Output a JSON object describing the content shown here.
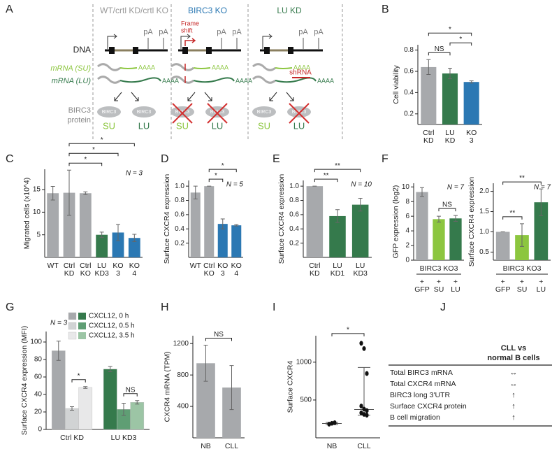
{
  "diagram": {
    "label": "A",
    "columns": [
      "WT/crtl KD/crtl KO",
      "BIRC3 KO",
      "LU KD"
    ],
    "dna": "DNA",
    "mrna_su": "mRNA (SU)",
    "mrna_lu": "mRNA (LU)",
    "protein": [
      "BIRC3",
      "protein"
    ],
    "pa": "pA",
    "polya": "AAAA",
    "frameshift": [
      "Frame",
      "shift"
    ],
    "shrna": "shRNA",
    "protein_name": "BIRC3",
    "isoforms": [
      "SU",
      "LU"
    ]
  },
  "chart_data": [
    {
      "type": "bar",
      "label": "B",
      "ylabel": "Cell viability",
      "categories": [
        [
          "Ctrl",
          "KD"
        ],
        [
          "LU",
          "KD"
        ],
        [
          "KO",
          "3"
        ]
      ],
      "values": [
        0.64,
        0.58,
        0.5
      ],
      "errors": [
        0.07,
        0.05,
        0.01
      ],
      "colors": [
        "#a7a9ac",
        "#357a4c",
        "#2b78b3"
      ],
      "ylim": [
        0.1,
        0.85
      ],
      "yticks": [
        0.2,
        0.4,
        0.6,
        0.8
      ],
      "brackets": [
        {
          "pair": [
            0,
            1
          ],
          "label": "NS"
        },
        {
          "pair": [
            1,
            2
          ],
          "label": "*"
        },
        {
          "pair": [
            0,
            2
          ],
          "label": "*"
        }
      ]
    },
    {
      "type": "bar",
      "label": "C",
      "ylabel": "Migrated cells (x10^4)",
      "note": "N = 3",
      "note_corner": "top-right",
      "categories": [
        [
          "WT"
        ],
        [
          "Ctrl",
          "KD"
        ],
        [
          "Ctrl",
          "KO"
        ],
        [
          "LU",
          "KD3"
        ],
        [
          "KO",
          "3"
        ],
        [
          "KO",
          "4"
        ]
      ],
      "values": [
        14.2,
        14.3,
        14.2,
        5,
        5.5,
        4.3
      ],
      "errors": [
        1.5,
        5,
        0.3,
        0.6,
        1.8,
        0.8
      ],
      "colors": [
        "#a7a9ac",
        "#a7a9ac",
        "#a7a9ac",
        "#357a4c",
        "#2b78b3",
        "#2b78b3"
      ],
      "ylim": [
        0,
        19.5
      ],
      "yticks": [
        5,
        10,
        15
      ],
      "brackets": [
        {
          "pair": [
            1,
            3
          ],
          "label": "*"
        },
        {
          "pair": [
            1,
            4
          ],
          "label": "*"
        },
        {
          "pair": [
            1,
            5
          ],
          "label": "*"
        }
      ]
    },
    {
      "type": "bar",
      "label": "D",
      "ylabel": "Surface CXCR4 expression",
      "note": "N = 5",
      "note_corner": "top-right",
      "categories": [
        [
          "WT"
        ],
        [
          "Ctrl",
          "KO"
        ],
        [
          "KO",
          "3"
        ],
        [
          "KO",
          "4"
        ]
      ],
      "values": [
        0.91,
        1,
        0.47,
        0.45
      ],
      "errors": [
        0.09,
        0,
        0.07,
        0.01
      ],
      "colors": [
        "#a7a9ac",
        "#a7a9ac",
        "#2b78b3",
        "#2b78b3"
      ],
      "ylim": [
        0,
        1.08
      ],
      "yticks": [
        0.2,
        0.4,
        0.6,
        0.8,
        {
          "value": 1,
          "label": "1.0"
        }
      ],
      "brackets": [
        {
          "pair": [
            1,
            2
          ],
          "label": "*"
        },
        {
          "pair": [
            1,
            3
          ],
          "label": "*"
        }
      ]
    },
    {
      "type": "bar",
      "label": "E",
      "ylabel": "Surface CXCR4 expression",
      "note": "N = 10",
      "note_corner": "top-right",
      "categories": [
        [
          "Ctrl",
          "KD"
        ],
        [
          "LU",
          "KD1"
        ],
        [
          "LU",
          "KD3"
        ]
      ],
      "values": [
        1,
        0.58,
        0.74
      ],
      "errors": [
        0,
        0.09,
        0.09
      ],
      "colors": [
        "#a7a9ac",
        "#357a4c",
        "#357a4c"
      ],
      "ylim": [
        0,
        1.08
      ],
      "yticks": [
        0.2,
        0.4,
        0.6,
        0.8,
        {
          "value": 1,
          "label": "1.0"
        }
      ],
      "brackets": [
        {
          "pair": [
            0,
            1
          ],
          "label": "**"
        },
        {
          "pair": [
            0,
            2
          ],
          "label": "**"
        }
      ]
    },
    {
      "type": "bar",
      "label": "F",
      "ylabel": "GFP expression (log2)",
      "note": "N = 7",
      "note_corner": "top-right",
      "xgroup": "BIRC3 KO3",
      "categories": [
        [
          "+",
          "GFP"
        ],
        [
          "+",
          "SU"
        ],
        [
          "+",
          "LU"
        ]
      ],
      "values": [
        9.3,
        5.6,
        5.7
      ],
      "errors": [
        0.6,
        0.4,
        0.4
      ],
      "colors": [
        "#a7a9ac",
        "#8cc63f",
        "#357a4c"
      ],
      "ylim": [
        0,
        10.5
      ],
      "yticks": [
        0,
        2,
        4,
        6,
        8,
        10
      ],
      "brackets": [
        {
          "pair": [
            1,
            2
          ],
          "label": "NS"
        }
      ]
    },
    {
      "type": "bar",
      "ylabel": "Surface CXCR4 expression",
      "note": "N = 7",
      "note_corner": "top-right",
      "xgroup": "BIRC3 KO3",
      "categories": [
        [
          "+",
          "GFP"
        ],
        [
          "+",
          "SU"
        ],
        [
          "+",
          "LU"
        ]
      ],
      "values": [
        1,
        0.92,
        1.73
      ],
      "errors": [
        0,
        0.28,
        0.33
      ],
      "colors": [
        "#a7a9ac",
        "#8cc63f",
        "#357a4c"
      ],
      "ylim": [
        0.3,
        2.2
      ],
      "yticks": [
        0.5,
        {
          "value": 1,
          "label": "1.0"
        },
        1.5,
        {
          "value": 2,
          "label": "2.0"
        }
      ],
      "brackets": [
        {
          "pair": [
            0,
            1
          ],
          "label": "**"
        },
        {
          "pair": [
            0,
            2
          ],
          "label": "**"
        }
      ]
    },
    {
      "type": "grouped_bar",
      "label": "G",
      "ylabel": "Surface CXCR4 expression (MFI)",
      "note": "N = 3",
      "note_corner": "top-left",
      "categories": [
        "Ctrl KD",
        "LU KD3"
      ],
      "series": [
        {
          "name": "CXCL12, 0 h",
          "colors": [
            "#a7a9ac",
            "#357a4c"
          ],
          "values": [
            90,
            69
          ],
          "errors": [
            11,
            3
          ]
        },
        {
          "name": "CXCL12, 0.5 h",
          "colors": [
            "#d1d3d4",
            "#5f9e74"
          ],
          "values": [
            24,
            23
          ],
          "errors": [
            2,
            7
          ]
        },
        {
          "name": "CXCL12, 3.5 h",
          "colors": [
            "#e8e8e9",
            "#9cc5a5"
          ],
          "values": [
            48,
            31
          ],
          "errors": [
            1,
            2
          ]
        }
      ],
      "ylim": [
        0,
        112
      ],
      "yticks": [
        0,
        20,
        40,
        60,
        80,
        100
      ],
      "brackets": [
        {
          "group": 0,
          "pair": [
            1,
            2
          ],
          "label": "*"
        },
        {
          "group": 1,
          "pair": [
            1,
            2
          ],
          "label": "NS"
        }
      ]
    },
    {
      "type": "bar",
      "label": "H",
      "ylabel": "CXCR4 mRNA (TPM)",
      "categories": [
        [
          "NB"
        ],
        [
          "CLL"
        ]
      ],
      "values": [
        950,
        640
      ],
      "errors": [
        230,
        280
      ],
      "colors": [
        "#a7a9ac",
        "#a7a9ac"
      ],
      "ylim": [
        0,
        1300
      ],
      "yticks": [
        400,
        800,
        1200
      ],
      "brackets": [
        {
          "pair": [
            0,
            1
          ],
          "label": "NS"
        }
      ]
    },
    {
      "type": "strip",
      "label": "I",
      "ylabel": "Surface CXCR4",
      "categories": [
        "NB",
        "CLL"
      ],
      "points": [
        [
          180,
          192,
          200
        ],
        [
          1250,
          1180,
          850,
          420,
          380,
          360,
          330,
          310,
          300
        ]
      ],
      "medians": [
        190,
        375
      ],
      "ranges": [
        [
          175,
          205
        ],
        [
          300,
          930
        ]
      ],
      "ylim": [
        0,
        1350
      ],
      "yticks": [
        500,
        1000
      ],
      "brackets": [
        {
          "pair": [
            0,
            1
          ],
          "label": "*"
        }
      ]
    }
  ],
  "table": {
    "label": "J",
    "header": [
      "CLL vs",
      "normal B cells"
    ],
    "rows": [
      [
        "Total BIRC3 mRNA",
        "↔"
      ],
      [
        "Total CXCR4 mRNA",
        "↔"
      ],
      [
        "BIRC3 long 3'UTR",
        "↑"
      ],
      [
        "Surface CXCR4 protein",
        "↑"
      ],
      [
        "B cell migration",
        "↑"
      ]
    ]
  }
}
